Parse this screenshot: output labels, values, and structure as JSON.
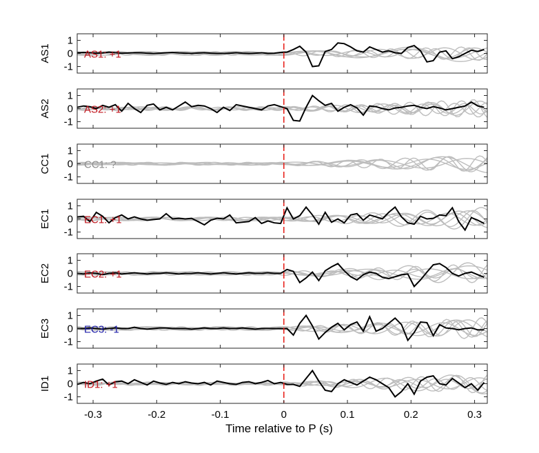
{
  "chart_data": {
    "type": "line",
    "layout": "stacked-panels",
    "xlabel": "Time relative to P (s)",
    "xlim": [
      -0.325,
      0.32
    ],
    "xticks": [
      -0.3,
      -0.2,
      -0.1,
      0,
      0.1,
      0.2,
      0.3
    ],
    "xtick_labels": [
      "-0.3",
      "-0.2",
      "-0.1",
      "0",
      "0.1",
      "0.2",
      "0.3"
    ],
    "ylim": [
      -1.5,
      1.5
    ],
    "yticks": [
      -1,
      0,
      1
    ],
    "ytick_labels": [
      "-1",
      "0",
      "1"
    ],
    "marker_x": 0,
    "marker_color": "#e8231e",
    "trace_color": "#000000",
    "background_trace_color": "#bdbdbd",
    "label_colors": {
      "positive": "#c0141c",
      "negative": "#1c1ca8",
      "unknown": "#8c8c8c"
    },
    "grid": false,
    "x": [
      -0.325,
      -0.315,
      -0.305,
      -0.295,
      -0.285,
      -0.275,
      -0.265,
      -0.255,
      -0.245,
      -0.235,
      -0.225,
      -0.215,
      -0.205,
      -0.195,
      -0.185,
      -0.175,
      -0.165,
      -0.155,
      -0.145,
      -0.135,
      -0.125,
      -0.115,
      -0.105,
      -0.095,
      -0.085,
      -0.075,
      -0.065,
      -0.055,
      -0.045,
      -0.035,
      -0.025,
      -0.015,
      -0.005,
      0.005,
      0.015,
      0.025,
      0.035,
      0.045,
      0.055,
      0.065,
      0.075,
      0.085,
      0.095,
      0.105,
      0.115,
      0.125,
      0.135,
      0.145,
      0.155,
      0.165,
      0.175,
      0.185,
      0.195,
      0.205,
      0.215,
      0.225,
      0.235,
      0.245,
      0.255,
      0.265,
      0.275,
      0.285,
      0.295,
      0.305,
      0.315
    ],
    "panels": [
      {
        "ylabel": "AS1",
        "annotation": "AS1: +1",
        "polarity": "positive",
        "trace": [
          0.05,
          0.08,
          0.05,
          0.02,
          0.04,
          0.1,
          0.05,
          0.02,
          0.03,
          0.06,
          0.05,
          0.02,
          0.0,
          0.02,
          0.05,
          0.08,
          0.04,
          0.02,
          0.0,
          0.03,
          0.05,
          0.02,
          0.0,
          0.0,
          0.02,
          0.05,
          0.02,
          0.0,
          0.02,
          0.05,
          0.0,
          0.02,
          0.08,
          0.1,
          0.3,
          0.55,
          0.1,
          -1.0,
          -0.95,
          0.15,
          0.3,
          0.8,
          0.75,
          0.5,
          0.2,
          0.1,
          0.5,
          0.3,
          0.1,
          0.2,
          0.05,
          0.0,
          0.45,
          0.6,
          0.2,
          -0.65,
          -0.55,
          0.1,
          0.2,
          -0.4,
          -0.25,
          0.0,
          0.25,
          0.15,
          0.3
        ]
      },
      {
        "ylabel": "AS2",
        "annotation": "AS2: +1",
        "polarity": "positive",
        "trace": [
          0.1,
          0.2,
          0.15,
          0.0,
          0.25,
          0.1,
          0.3,
          -0.2,
          0.4,
          0.0,
          -0.3,
          0.25,
          0.35,
          -0.1,
          0.1,
          -0.1,
          0.2,
          0.5,
          0.15,
          0.25,
          0.2,
          0.0,
          -0.3,
          0.1,
          -0.15,
          0.3,
          0.2,
          0.1,
          0.0,
          -0.1,
          0.2,
          0.3,
          0.15,
          0.0,
          -0.9,
          -0.95,
          0.1,
          1.0,
          0.6,
          0.25,
          0.4,
          -0.2,
          0.1,
          0.3,
          0.05,
          -0.5,
          0.2,
          0.15,
          0.0,
          -0.1,
          0.05,
          0.1,
          0.2,
          0.25,
          0.1,
          0.0,
          0.15,
          0.05,
          -0.1,
          0.0,
          0.1,
          0.2,
          0.5,
          0.2,
          0.1
        ]
      },
      {
        "ylabel": "CC1",
        "annotation": "CC1: ?",
        "polarity": "unknown",
        "trace": []
      },
      {
        "ylabel": "EC1",
        "annotation": "EC1: +1",
        "polarity": "positive",
        "trace": [
          0.15,
          0.2,
          -0.2,
          0.5,
          0.2,
          -0.3,
          0.1,
          0.3,
          0.0,
          0.15,
          0.0,
          -0.1,
          -0.05,
          0.0,
          0.4,
          0.0,
          0.05,
          0.0,
          0.05,
          -0.2,
          -0.45,
          -0.1,
          0.05,
          0.0,
          0.3,
          -0.3,
          -0.25,
          -0.2,
          0.1,
          -0.35,
          -0.15,
          -0.3,
          -0.35,
          0.85,
          0.0,
          0.25,
          0.9,
          0.3,
          -0.4,
          0.5,
          -0.25,
          0.0,
          -0.3,
          0.3,
          0.4,
          -0.1,
          0.3,
          0.15,
          0.0,
          0.5,
          0.9,
          0.15,
          -0.3,
          -0.4,
          0.2,
          0.0,
          0.05,
          0.3,
          0.25,
          0.85,
          -0.2,
          -0.85,
          0.1,
          -0.1,
          -0.35
        ]
      },
      {
        "ylabel": "EC2",
        "annotation": "EC2: +1",
        "polarity": "positive",
        "trace": [
          0.0,
          -0.05,
          0.05,
          0.0,
          -0.1,
          0.0,
          0.05,
          -0.05,
          0.0,
          0.05,
          0.0,
          -0.05,
          0.0,
          0.0,
          0.05,
          0.0,
          -0.05,
          0.0,
          0.0,
          0.05,
          0.0,
          -0.05,
          0.0,
          0.05,
          0.0,
          -0.05,
          0.0,
          0.05,
          0.0,
          0.0,
          0.05,
          0.0,
          0.0,
          0.3,
          0.15,
          -0.7,
          -0.35,
          0.1,
          -0.55,
          0.2,
          0.5,
          0.75,
          0.2,
          -0.25,
          -0.5,
          -0.1,
          0.1,
          0.0,
          -0.3,
          -0.4,
          -0.25,
          -0.1,
          -0.05,
          -1.0,
          -0.5,
          0.1,
          0.65,
          0.75,
          0.45,
          0.0,
          -0.2,
          0.0,
          0.1,
          -0.1,
          -0.3
        ]
      },
      {
        "ylabel": "EC3",
        "annotation": "EC3: -1",
        "polarity": "negative",
        "trace": [
          0.0,
          0.0,
          0.05,
          0.0,
          -0.05,
          0.0,
          0.05,
          0.0,
          0.0,
          0.1,
          0.0,
          -0.05,
          0.0,
          0.05,
          0.05,
          0.0,
          0.0,
          0.0,
          -0.05,
          0.0,
          0.05,
          0.0,
          0.0,
          0.05,
          0.0,
          0.0,
          0.05,
          0.0,
          -0.05,
          0.0,
          0.0,
          0.0,
          0.0,
          0.0,
          -0.5,
          0.4,
          1.0,
          0.2,
          -0.8,
          -0.3,
          0.1,
          0.4,
          -0.1,
          0.3,
          0.5,
          -0.2,
          0.9,
          -0.2,
          0.0,
          0.4,
          0.8,
          0.3,
          -0.9,
          -0.3,
          0.5,
          0.45,
          -0.55,
          0.3,
          0.05,
          0.0,
          -0.1,
          0.0,
          0.05,
          -0.1,
          -0.1
        ]
      },
      {
        "ylabel": "ID1",
        "annotation": "ID1: +1",
        "polarity": "positive",
        "trace": [
          -0.05,
          0.1,
          0.0,
          0.2,
          0.35,
          -0.1,
          0.15,
          0.2,
          0.0,
          0.3,
          0.1,
          -0.1,
          0.2,
          0.05,
          -0.05,
          0.1,
          0.0,
          0.15,
          0.05,
          0.0,
          0.1,
          -0.1,
          0.2,
          0.1,
          0.0,
          -0.05,
          0.1,
          0.15,
          0.0,
          0.1,
          0.25,
          0.0,
          0.1,
          -0.05,
          -0.05,
          -0.2,
          0.4,
          1.0,
          0.2,
          -0.5,
          -0.6,
          0.0,
          0.3,
          0.1,
          -0.1,
          0.2,
          0.5,
          0.3,
          0.0,
          -0.3,
          -1.0,
          -0.6,
          0.0,
          -0.8,
          0.2,
          0.5,
          0.6,
          0.0,
          -0.1,
          0.4,
          0.05,
          -0.3,
          0.0,
          -0.5,
          0.1
        ]
      }
    ]
  }
}
